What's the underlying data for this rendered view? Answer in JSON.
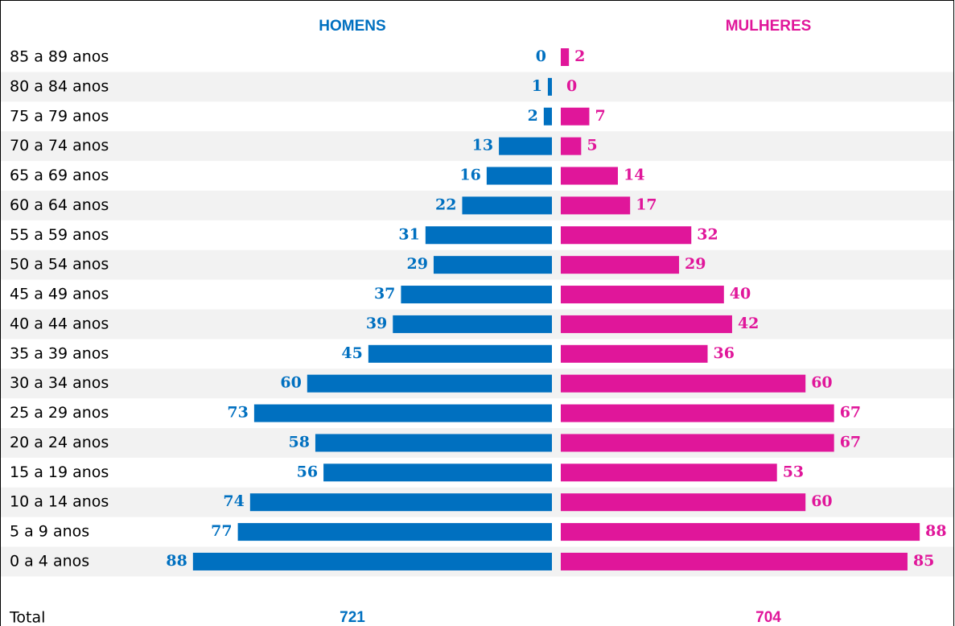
{
  "chart_data": {
    "type": "pyramid",
    "categories": [
      "85 a 89 anos",
      "80 a 84 anos",
      "75 a 79 anos",
      "70 a 74 anos",
      "65 a 69 anos",
      "60 a 64 anos",
      "55 a 59 anos",
      "50 a 54 anos",
      "45 a 49 anos",
      "40 a 44 anos",
      "35 a 39 anos",
      "30 a 34 anos",
      "25 a 29 anos",
      "20 a 24 anos",
      "15 a 19 anos",
      "10 a 14 anos",
      "5 a 9 anos",
      "0 a 4 anos"
    ],
    "series": [
      {
        "name": "HOMENS",
        "color": "#0070c0",
        "values": [
          0,
          1,
          2,
          13,
          16,
          22,
          31,
          29,
          37,
          39,
          45,
          60,
          73,
          58,
          56,
          74,
          77,
          88
        ],
        "total": 721
      },
      {
        "name": "MULHERES",
        "color": "#e0169a",
        "values": [
          2,
          0,
          7,
          5,
          14,
          17,
          32,
          29,
          40,
          42,
          36,
          60,
          67,
          67,
          53,
          60,
          88,
          85
        ],
        "total": 704
      }
    ],
    "total_label": "Total"
  }
}
